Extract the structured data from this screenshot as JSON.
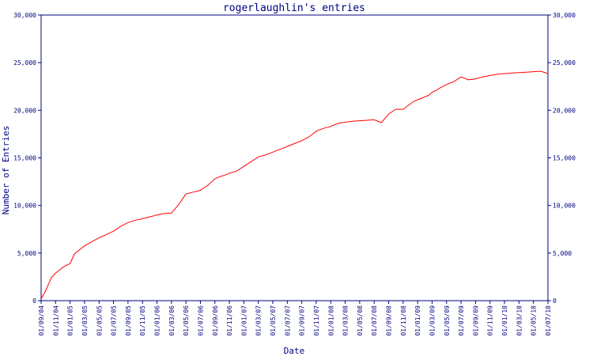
{
  "chart_data": {
    "type": "line",
    "title": "rogerlaughlin's entries",
    "xlabel": "Date",
    "ylabel": "Number of Entries",
    "ylim": [
      0,
      30000
    ],
    "yticks": [
      {
        "value": 0,
        "label": "0"
      },
      {
        "value": 5000,
        "label": "5,000"
      },
      {
        "value": 10000,
        "label": "10,000"
      },
      {
        "value": 15000,
        "label": "15,000"
      },
      {
        "value": 20000,
        "label": "20,000"
      },
      {
        "value": 25000,
        "label": "25,000"
      },
      {
        "value": 30000,
        "label": "30,000"
      }
    ],
    "right_axis": true,
    "grid": false,
    "xticks": [
      "01/09/04",
      "01/11/04",
      "01/01/05",
      "01/03/05",
      "01/05/05",
      "01/07/05",
      "01/09/05",
      "01/11/05",
      "01/01/06",
      "01/03/06",
      "01/05/06",
      "01/07/06",
      "01/09/06",
      "01/11/06",
      "01/01/07",
      "01/03/07",
      "01/05/07",
      "01/07/07",
      "01/09/07",
      "01/11/07",
      "01/01/08",
      "01/03/08",
      "01/05/08",
      "01/07/08",
      "01/09/08",
      "01/11/08",
      "01/01/09",
      "01/03/09",
      "01/05/09",
      "01/07/09",
      "01/09/09",
      "01/11/09",
      "01/01/10",
      "01/03/10",
      "01/05/10",
      "01/07/10"
    ],
    "series": [
      {
        "color": "#ff0000",
        "x": [
          0,
          0.3,
          0.7,
          1.0,
          1.6,
          2.0,
          2.3,
          2.7,
          3.0,
          3.5,
          4.0,
          4.5,
          5.0,
          5.5,
          6.0,
          6.5,
          7.0,
          7.5,
          8.0,
          8.5,
          9.0,
          9.5,
          10.0,
          10.5,
          10.8,
          11.0,
          11.5,
          12.0,
          12.3,
          12.7,
          13.0,
          13.5,
          14.0,
          14.5,
          15.0,
          15.5,
          16.0,
          16.5,
          17.0,
          17.5,
          18.0,
          18.5,
          19.0,
          19.5,
          20.0,
          20.3,
          20.6,
          21.0,
          21.5,
          22.0,
          22.5,
          23.0,
          23.5,
          24.0,
          24.5,
          25.0,
          25.7,
          26.0,
          26.5,
          26.8,
          27.0,
          27.3,
          27.6,
          28.0,
          28.5,
          29.0,
          29.5,
          30.0,
          30.5,
          31.0,
          31.6,
          32.0,
          32.5,
          33.0,
          33.5,
          34.0,
          34.5,
          35.0
        ],
        "y": [
          200,
          1000,
          2400,
          2900,
          3600,
          3900,
          4900,
          5400,
          5750,
          6200,
          6600,
          6950,
          7300,
          7800,
          8200,
          8450,
          8600,
          8800,
          9000,
          9150,
          9200,
          10100,
          11200,
          11400,
          11500,
          11600,
          12100,
          12800,
          13000,
          13200,
          13400,
          13600,
          14100,
          14600,
          15100,
          15300,
          15600,
          15900,
          16200,
          16500,
          16800,
          17200,
          17800,
          18100,
          18300,
          18500,
          18650,
          18750,
          18850,
          18900,
          18950,
          19000,
          18700,
          19600,
          20100,
          20100,
          20900,
          21100,
          21400,
          21600,
          21900,
          22100,
          22400,
          22700,
          23000,
          23500,
          23200,
          23300,
          23500,
          23650,
          23800,
          23850,
          23900,
          23950,
          24000,
          24050,
          24100,
          23850
        ]
      }
    ]
  }
}
